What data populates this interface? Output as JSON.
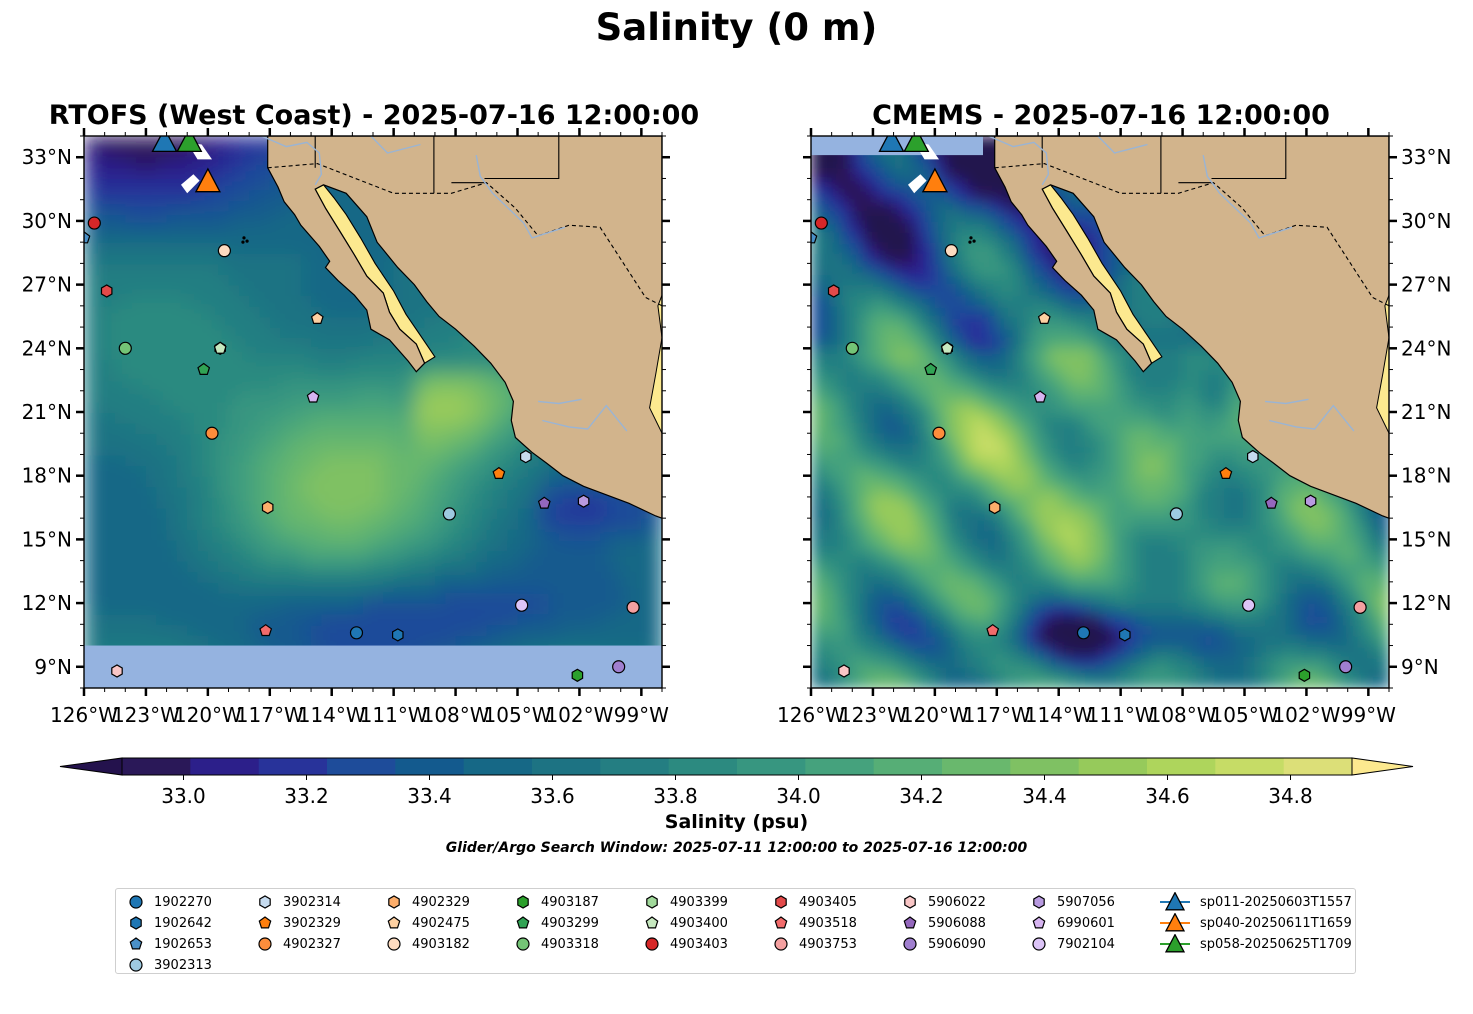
{
  "figure": {
    "suptitle": "Salinity (0 m)",
    "left_title": "RTOFS (West Coast) - 2025-07-16 12:00:00",
    "right_title": "CMEMS - 2025-07-16 12:00:00",
    "colorbar_label": "Salinity (psu)",
    "search_window": "Glider/Argo Search Window: 2025-07-11 12:00:00 to 2025-07-16 12:00:00"
  },
  "chart_data": [
    {
      "type": "heatmap",
      "title": "RTOFS (West Coast) - 2025-07-16 12:00:00",
      "variable": "Salinity (psu)",
      "depth": "0 m",
      "xlim": [
        -126,
        -98
      ],
      "ylim": [
        8,
        34
      ],
      "x_ticks": [
        "126°W",
        "123°W",
        "120°W",
        "117°W",
        "114°W",
        "111°W",
        "108°W",
        "105°W",
        "102°W",
        "99°W"
      ],
      "y_ticks": [
        "9°N",
        "12°N",
        "15°N",
        "18°N",
        "21°N",
        "24°N",
        "27°N",
        "30°N",
        "33°N"
      ],
      "no_data_south_of": 10
    },
    {
      "type": "heatmap",
      "title": "CMEMS - 2025-07-16 12:00:00",
      "variable": "Salinity (psu)",
      "depth": "0 m",
      "xlim": [
        -126,
        -98
      ],
      "ylim": [
        8,
        34
      ],
      "x_ticks": [
        "126°W",
        "123°W",
        "120°W",
        "117°W",
        "114°W",
        "111°W",
        "108°W",
        "105°W",
        "102°W",
        "99°W"
      ],
      "y_ticks": [
        "9°N",
        "12°N",
        "15°N",
        "18°N",
        "21°N",
        "24°N",
        "27°N",
        "30°N",
        "33°N"
      ]
    }
  ],
  "colorbar": {
    "ticks": [
      "33.0",
      "33.2",
      "33.4",
      "33.6",
      "33.8",
      "34.0",
      "34.2",
      "34.4",
      "34.6",
      "34.8"
    ],
    "tick_values": [
      33.0,
      33.2,
      33.4,
      33.6,
      33.8,
      34.0,
      34.2,
      34.4,
      34.6,
      34.8
    ],
    "range": [
      32.9,
      34.9
    ],
    "extend": "both",
    "colors": [
      "#2a1858",
      "#2c1f8a",
      "#28339a",
      "#1e4c9a",
      "#135a8e",
      "#166886",
      "#1d7383",
      "#247e82",
      "#2c8a80",
      "#379680",
      "#45a27d",
      "#56ae76",
      "#69b86d",
      "#7fc163",
      "#96ca5b",
      "#aed55c",
      "#c6dc66",
      "#dcdf78"
    ],
    "under_color": "#24124d",
    "over_color": "#fce98f"
  },
  "floats": [
    {
      "id": "1902270",
      "lon": -112.8,
      "lat": 10.6,
      "marker": "circle",
      "color": "#1f77b4"
    },
    {
      "id": "1902642",
      "lon": -110.8,
      "lat": 10.5,
      "marker": "hexagon",
      "color": "#1f77b4"
    },
    {
      "id": "1902653",
      "lon": -126.0,
      "lat": 29.2,
      "marker": "pentagon",
      "color": "#4a90c8"
    },
    {
      "id": "3902313",
      "lon": -108.3,
      "lat": 16.2,
      "marker": "circle",
      "color": "#9ecae1"
    },
    {
      "id": "3902314",
      "lon": -104.6,
      "lat": 18.9,
      "marker": "hexagon",
      "color": "#c6dbef"
    },
    {
      "id": "3902329",
      "lon": -105.9,
      "lat": 18.1,
      "marker": "pentagon",
      "color": "#ff7f0e"
    },
    {
      "id": "4902327",
      "lon": -119.8,
      "lat": 20.0,
      "marker": "circle",
      "color": "#fd8d3c"
    },
    {
      "id": "4902329",
      "lon": -117.1,
      "lat": 16.5,
      "marker": "hexagon",
      "color": "#fdae6b"
    },
    {
      "id": "4902475",
      "lon": -114.7,
      "lat": 25.4,
      "marker": "pentagon",
      "color": "#fdd0a2"
    },
    {
      "id": "4903182",
      "lon": -119.2,
      "lat": 28.6,
      "marker": "circle",
      "color": "#fddbc0"
    },
    {
      "id": "4903187",
      "lon": -102.1,
      "lat": 8.6,
      "marker": "hexagon",
      "color": "#2ca02c"
    },
    {
      "id": "4903299",
      "lon": -120.2,
      "lat": 23.0,
      "marker": "pentagon",
      "color": "#31a354"
    },
    {
      "id": "4903318",
      "lon": -124.0,
      "lat": 24.0,
      "marker": "circle",
      "color": "#74c476"
    },
    {
      "id": "4903399",
      "lon": -119.4,
      "lat": 24.0,
      "marker": "hexagon",
      "color": "#a1d99b"
    },
    {
      "id": "4903400",
      "lon": -119.4,
      "lat": 24.0,
      "marker": "pentagon",
      "color": "#c7e9c0"
    },
    {
      "id": "4903403",
      "lon": -125.5,
      "lat": 29.9,
      "marker": "circle",
      "color": "#d62728"
    },
    {
      "id": "4903405",
      "lon": -124.9,
      "lat": 26.7,
      "marker": "hexagon",
      "color": "#e34a4a"
    },
    {
      "id": "4903518",
      "lon": -117.2,
      "lat": 10.7,
      "marker": "pentagon",
      "color": "#f26b6b"
    },
    {
      "id": "4903753",
      "lon": -99.4,
      "lat": 11.8,
      "marker": "circle",
      "color": "#f4a0a0"
    },
    {
      "id": "5906022",
      "lon": -124.4,
      "lat": 8.8,
      "marker": "hexagon",
      "color": "#f9c6c6"
    },
    {
      "id": "5906088",
      "lon": -103.7,
      "lat": 16.7,
      "marker": "pentagon",
      "color": "#9467bd"
    },
    {
      "id": "5906090",
      "lon": -100.1,
      "lat": 9.0,
      "marker": "circle",
      "color": "#a07fcf"
    },
    {
      "id": "5907056",
      "lon": -101.8,
      "lat": 16.8,
      "marker": "hexagon",
      "color": "#b89ae0"
    },
    {
      "id": "6990601",
      "lon": -114.9,
      "lat": 21.7,
      "marker": "pentagon",
      "color": "#d6b4f0"
    },
    {
      "id": "7902104",
      "lon": -104.8,
      "lat": 11.9,
      "marker": "circle",
      "color": "#dcc4f7"
    }
  ],
  "gliders": [
    {
      "id": "sp011-20250603T1557",
      "lon": -122.1,
      "lat": 33.7,
      "color": "#1f77b4"
    },
    {
      "id": "sp040-20250611T1659",
      "lon": -120.0,
      "lat": 31.8,
      "color": "#ff7f0e"
    },
    {
      "id": "sp058-20250625T1709",
      "lon": -120.9,
      "lat": 33.7,
      "color": "#2ca02c"
    }
  ]
}
